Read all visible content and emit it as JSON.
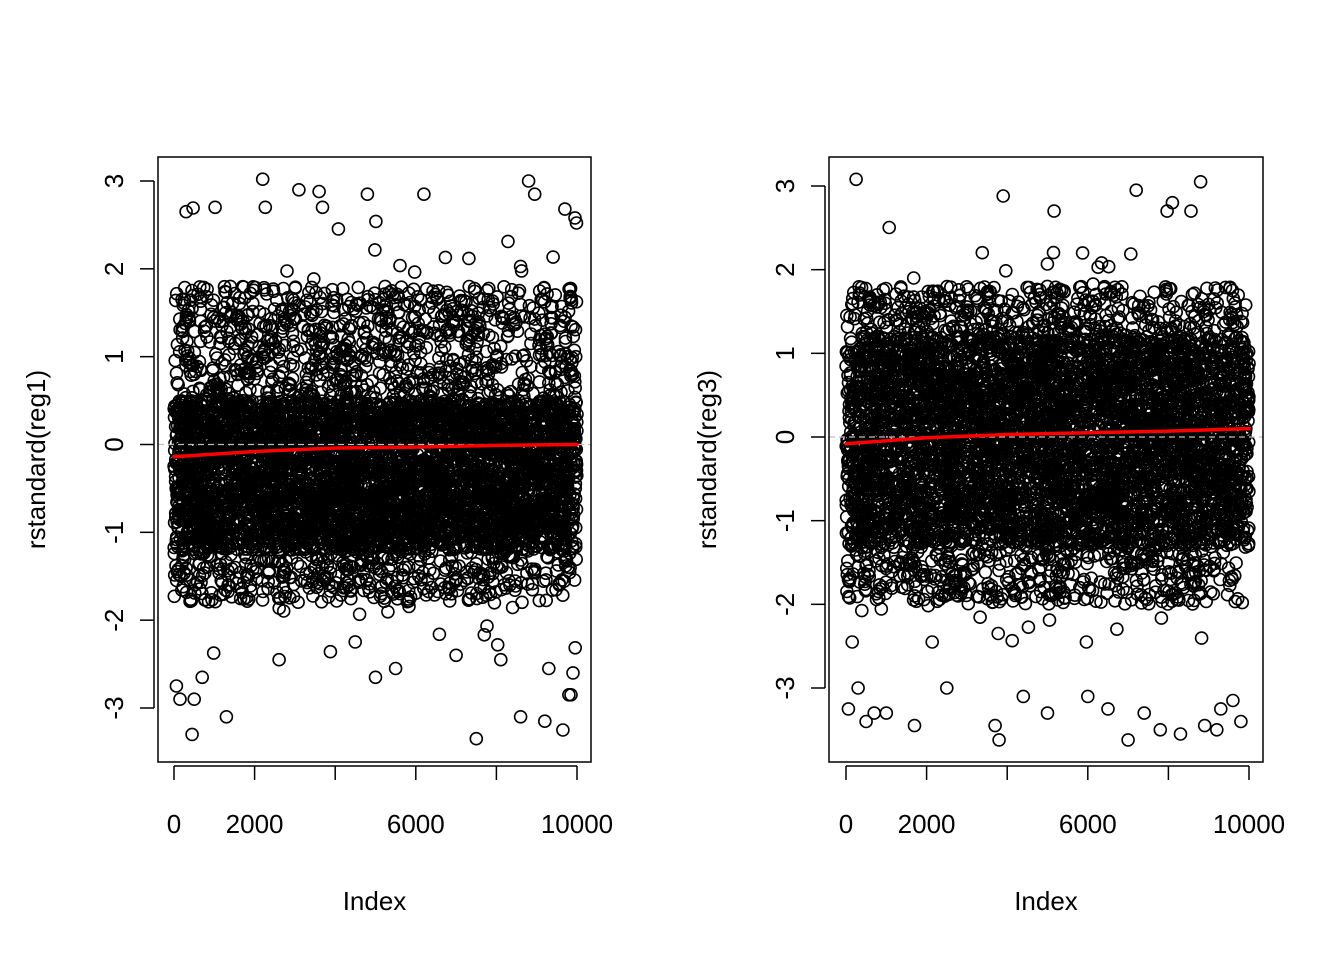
{
  "chart_data": [
    {
      "type": "scatter",
      "title": "",
      "xlabel": "Index",
      "ylabel": "rstandard(reg1)",
      "xlim": [
        1,
        10000
      ],
      "ylim": [
        -3.4,
        3.0
      ],
      "x_ticks": [
        0,
        2000,
        4000,
        6000,
        8000,
        10000
      ],
      "x_tick_labels": [
        "0",
        "2000",
        "",
        "6000",
        "",
        "10000"
      ],
      "y_ticks": [
        -3,
        -2,
        -1,
        0,
        1,
        2,
        3
      ],
      "y_tick_labels": [
        "-3",
        "-2",
        "-1",
        "0",
        "1",
        "2",
        "3"
      ],
      "n_points": 10000,
      "point_marker": "open-circle",
      "point_color": "#000000",
      "dense_band_y": [
        -1.8,
        1.8
      ],
      "dense_core_y": [
        -1.2,
        0.5
      ],
      "grid": false,
      "reference_line": {
        "y": 0,
        "color": "#bebebe",
        "style": "dashed"
      },
      "smooth_line": {
        "color": "#ff0000",
        "x": [
          1,
          2000,
          4000,
          6000,
          8000,
          10000
        ],
        "y": [
          -0.14,
          -0.08,
          -0.04,
          -0.03,
          -0.01,
          0.0
        ]
      },
      "outliers": [
        {
          "x": 60,
          "y": -2.75
        },
        {
          "x": 150,
          "y": -2.9
        },
        {
          "x": 300,
          "y": 2.65
        },
        {
          "x": 450,
          "y": -3.3
        },
        {
          "x": 500,
          "y": -2.9
        },
        {
          "x": 700,
          "y": -2.65
        },
        {
          "x": 1300,
          "y": -3.1
        },
        {
          "x": 2200,
          "y": 3.02
        },
        {
          "x": 3100,
          "y": 2.9
        },
        {
          "x": 3600,
          "y": 2.88
        },
        {
          "x": 4800,
          "y": 2.85
        },
        {
          "x": 5000,
          "y": -2.65
        },
        {
          "x": 5500,
          "y": -2.55
        },
        {
          "x": 6200,
          "y": 2.85
        },
        {
          "x": 7000,
          "y": -2.4
        },
        {
          "x": 7500,
          "y": -3.35
        },
        {
          "x": 8600,
          "y": -3.1
        },
        {
          "x": 8800,
          "y": 3.0
        },
        {
          "x": 8950,
          "y": 2.85
        },
        {
          "x": 9200,
          "y": -3.15
        },
        {
          "x": 9300,
          "y": -2.55
        },
        {
          "x": 9650,
          "y": -3.25
        },
        {
          "x": 9800,
          "y": -2.85
        },
        {
          "x": 9900,
          "y": -2.6
        },
        {
          "x": 9950,
          "y": 2.58
        },
        {
          "x": 9700,
          "y": 2.68
        },
        {
          "x": 9850,
          "y": -2.85
        }
      ]
    },
    {
      "type": "scatter",
      "title": "",
      "xlabel": "Index",
      "ylabel": "rstandard(reg3)",
      "xlim": [
        1,
        10000
      ],
      "ylim": [
        -3.6,
        3.1
      ],
      "x_ticks": [
        0,
        2000,
        4000,
        6000,
        8000,
        10000
      ],
      "x_tick_labels": [
        "0",
        "2000",
        "",
        "6000",
        "",
        "10000"
      ],
      "y_ticks": [
        -3,
        -2,
        -1,
        0,
        1,
        2,
        3
      ],
      "y_tick_labels": [
        "-3",
        "-2",
        "-1",
        "0",
        "1",
        "2",
        "3"
      ],
      "n_points": 10000,
      "point_marker": "open-circle",
      "point_color": "#000000",
      "dense_band_y": [
        -2.0,
        1.8
      ],
      "dense_core_y": [
        -1.3,
        1.2
      ],
      "grid": false,
      "reference_line": {
        "y": 0,
        "color": "#bebebe",
        "style": "dashed"
      },
      "smooth_line": {
        "color": "#ff0000",
        "x": [
          1,
          2000,
          4000,
          6000,
          8000,
          10000
        ],
        "y": [
          -0.08,
          -0.01,
          0.03,
          0.05,
          0.07,
          0.1
        ]
      },
      "outliers": [
        {
          "x": 60,
          "y": -3.25
        },
        {
          "x": 250,
          "y": 3.08
        },
        {
          "x": 300,
          "y": -3.0
        },
        {
          "x": 500,
          "y": -3.4
        },
        {
          "x": 700,
          "y": -3.3
        },
        {
          "x": 1000,
          "y": -3.3
        },
        {
          "x": 1700,
          "y": -3.45
        },
        {
          "x": 2500,
          "y": -3.0
        },
        {
          "x": 3700,
          "y": -3.45
        },
        {
          "x": 3800,
          "y": -3.62
        },
        {
          "x": 3900,
          "y": 2.88
        },
        {
          "x": 4400,
          "y": -3.1
        },
        {
          "x": 5000,
          "y": -3.3
        },
        {
          "x": 6000,
          "y": -3.1
        },
        {
          "x": 6500,
          "y": -3.25
        },
        {
          "x": 7000,
          "y": -3.62
        },
        {
          "x": 7200,
          "y": 2.95
        },
        {
          "x": 7400,
          "y": -3.3
        },
        {
          "x": 7800,
          "y": -3.5
        },
        {
          "x": 8100,
          "y": 2.8
        },
        {
          "x": 8300,
          "y": -3.55
        },
        {
          "x": 8800,
          "y": 3.05
        },
        {
          "x": 8900,
          "y": -3.45
        },
        {
          "x": 9200,
          "y": -3.5
        },
        {
          "x": 9300,
          "y": -3.25
        },
        {
          "x": 9600,
          "y": -3.15
        },
        {
          "x": 9800,
          "y": -3.4
        }
      ]
    }
  ]
}
